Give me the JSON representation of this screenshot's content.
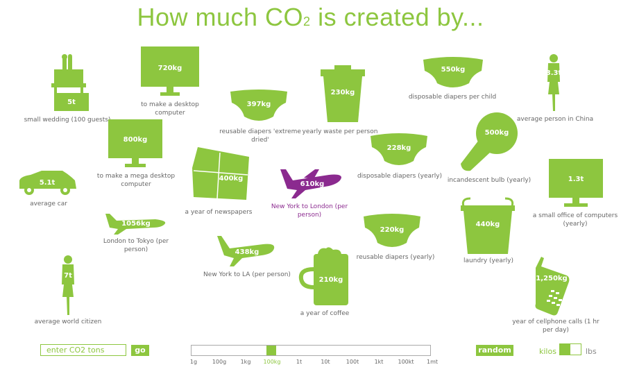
{
  "title_main": "How much CO",
  "title_sub": "2",
  "title_end": " is created by...",
  "items": [
    {
      "id": "wedding",
      "value": "5t",
      "caption": "small wedding (100 guests)"
    },
    {
      "id": "desktop",
      "value": "720kg",
      "caption": "to make a desktop computer"
    },
    {
      "id": "reusable_extreme",
      "value": "397kg",
      "caption": "reusable diapers 'extreme dried'"
    },
    {
      "id": "waste",
      "value": "230kg",
      "caption": "yearly waste per person"
    },
    {
      "id": "disposable_child",
      "value": "550kg",
      "caption": "disposable diapers per child"
    },
    {
      "id": "china",
      "value": "3.3t",
      "caption": "average person in China"
    },
    {
      "id": "mega_desktop",
      "value": "800kg",
      "caption": "to make a mega desktop computer"
    },
    {
      "id": "newspapers",
      "value": "400kg",
      "caption": "a year of newspapers"
    },
    {
      "id": "ny_london",
      "value": "610kg",
      "caption": "New York to London (per person)"
    },
    {
      "id": "disposable_yearly",
      "value": "228kg",
      "caption": "disposable diapers (yearly)"
    },
    {
      "id": "bulb",
      "value": "500kg",
      "caption": "incandescent bulb (yearly)"
    },
    {
      "id": "office",
      "value": "1.3t",
      "caption": "a small office of computers (yearly)"
    },
    {
      "id": "car",
      "value": "5.1t",
      "caption": "average car"
    },
    {
      "id": "london_tokyo",
      "value": "1056kg",
      "caption": "London to Tokyo (per person)"
    },
    {
      "id": "ny_la",
      "value": "438kg",
      "caption": "New York to LA (per person)"
    },
    {
      "id": "reusable_yearly",
      "value": "220kg",
      "caption": "reusable diapers (yearly)"
    },
    {
      "id": "laundry",
      "value": "440kg",
      "caption": "laundry (yearly)"
    },
    {
      "id": "world",
      "value": "7t",
      "caption": "average world citizen"
    },
    {
      "id": "coffee",
      "value": "210kg",
      "caption": "a year of coffee"
    },
    {
      "id": "cellphone",
      "value": "1,250kg",
      "caption": "year of cellphone calls (1 hr per day)"
    }
  ],
  "controls": {
    "input_placeholder": "enter CO2 tons",
    "go_label": "go",
    "random_label": "random",
    "unit_kilos": "kilos",
    "unit_lbs": "lbs",
    "selected_unit": "kilos",
    "scale_selected": "100kg",
    "scale_ticks": [
      "1g",
      "100g",
      "1kg",
      "100kg",
      "1t",
      "10t",
      "100t",
      "1kt",
      "100kt",
      "1mt"
    ]
  },
  "colors": {
    "accent": "#8dc63f",
    "highlight": "#8b2a8f",
    "text": "#666666"
  }
}
